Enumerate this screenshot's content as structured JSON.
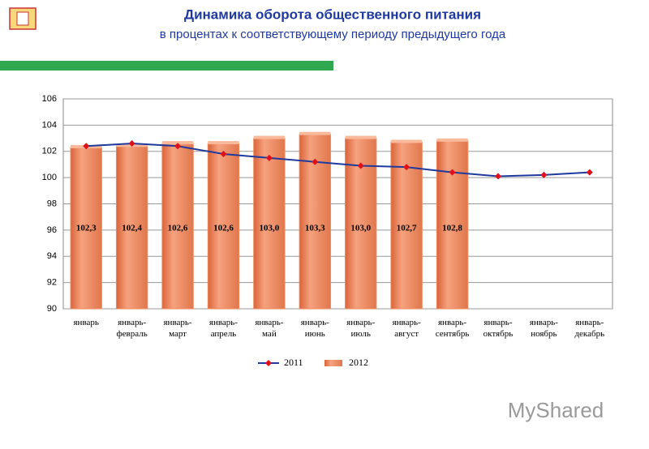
{
  "chart_data": {
    "type": "bar",
    "title": "Динамика оборота общественного питания",
    "subtitle": "в процентах к соответствующему периоду предыдущего года",
    "categories": [
      "январь",
      "январь-\nфевраль",
      "январь-\nмарт",
      "январь-\nапрель",
      "январь-\nмай",
      "январь-\nиюнь",
      "январь-\nиюль",
      "январь-\nавгуст",
      "январь-\nсентябрь",
      "январь-\nоктябрь",
      "январь-\nноябрь",
      "январь-\nдекабрь"
    ],
    "series": [
      {
        "name": "2011",
        "type": "line",
        "color": "#1f3a9e",
        "marker_color": "#e0101a",
        "values": [
          102.4,
          102.6,
          102.4,
          101.8,
          101.5,
          101.2,
          100.9,
          100.8,
          100.4,
          100.1,
          100.2,
          100.4
        ]
      },
      {
        "name": "2012",
        "type": "bar",
        "color": "#ee8a5e",
        "values": [
          102.3,
          102.4,
          102.6,
          102.6,
          103.0,
          103.3,
          103.0,
          102.7,
          102.8,
          null,
          null,
          null
        ],
        "value_labels": [
          "102,3",
          "102,4",
          "102,6",
          "102,6",
          "103,0",
          "103,3",
          "103,0",
          "102,7",
          "102,8",
          null,
          null,
          null
        ]
      }
    ],
    "ylim": [
      90,
      106
    ],
    "yticks": [
      90,
      92,
      94,
      96,
      98,
      100,
      102,
      104,
      106
    ],
    "grid": true,
    "legend": "bottom",
    "watermark": "MyShared"
  }
}
